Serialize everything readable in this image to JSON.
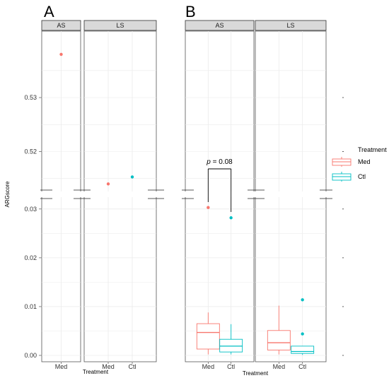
{
  "chart_data": {
    "type": "box",
    "y_axis_title": "ARGscore",
    "x_axis_title": "Treatment",
    "y_axis_break": {
      "lower_range": [
        0,
        0.032
      ],
      "upper_range": [
        0.513,
        0.541
      ]
    },
    "y_ticks_lower": [
      "0.00",
      "0.01",
      "0.02",
      "0.03"
    ],
    "y_ticks_upper": [
      "0.52",
      "0.53"
    ],
    "colors": {
      "Med": "#f8766d",
      "Ctl": "#00bfc4"
    },
    "legend": {
      "title": "Treatment",
      "items": [
        "Med",
        "Ctl"
      ],
      "position": "right"
    },
    "panels": [
      {
        "letter": "A",
        "facets": [
          {
            "label": "AS",
            "categories": [
              "Med"
            ],
            "points": [
              {
                "group": "Med",
                "y": 0.538
              }
            ]
          },
          {
            "label": "LS",
            "categories": [
              "Med",
              "Ctl"
            ],
            "points": [
              {
                "group": "Med",
                "y": 0.514
              },
              {
                "group": "Ctl",
                "y": 0.5153
              }
            ]
          }
        ]
      },
      {
        "letter": "B",
        "annotation": {
          "p_symbol": "p",
          "text": " = 0.08"
        },
        "facets": [
          {
            "label": "AS",
            "categories": [
              "Med",
              "Ctl"
            ],
            "boxes": [
              {
                "group": "Med",
                "whisker_low": 0.0002,
                "q1": 0.0013,
                "median": 0.0047,
                "q3": 0.0065,
                "whisker_high": 0.0088
              },
              {
                "group": "Ctl",
                "whisker_low": 0.0002,
                "q1": 0.0007,
                "median": 0.0019,
                "q3": 0.0033,
                "whisker_high": 0.0064
              }
            ],
            "outliers": [
              {
                "group": "Med",
                "y": 0.0303
              },
              {
                "group": "Ctl",
                "y": 0.0282
              }
            ]
          },
          {
            "label": "LS",
            "categories": [
              "Med",
              "Ctl"
            ],
            "boxes": [
              {
                "group": "Med",
                "whisker_low": 0.0002,
                "q1": 0.0011,
                "median": 0.0026,
                "q3": 0.0051,
                "whisker_high": 0.0102
              },
              {
                "group": "Ctl",
                "whisker_low": 0.0001,
                "q1": 0.0004,
                "median": 0.0008,
                "q3": 0.0019,
                "whisker_high": 0.0019
              }
            ],
            "outliers": [
              {
                "group": "Ctl",
                "y": 0.0114
              },
              {
                "group": "Ctl",
                "y": 0.0044
              }
            ]
          }
        ]
      }
    ]
  }
}
